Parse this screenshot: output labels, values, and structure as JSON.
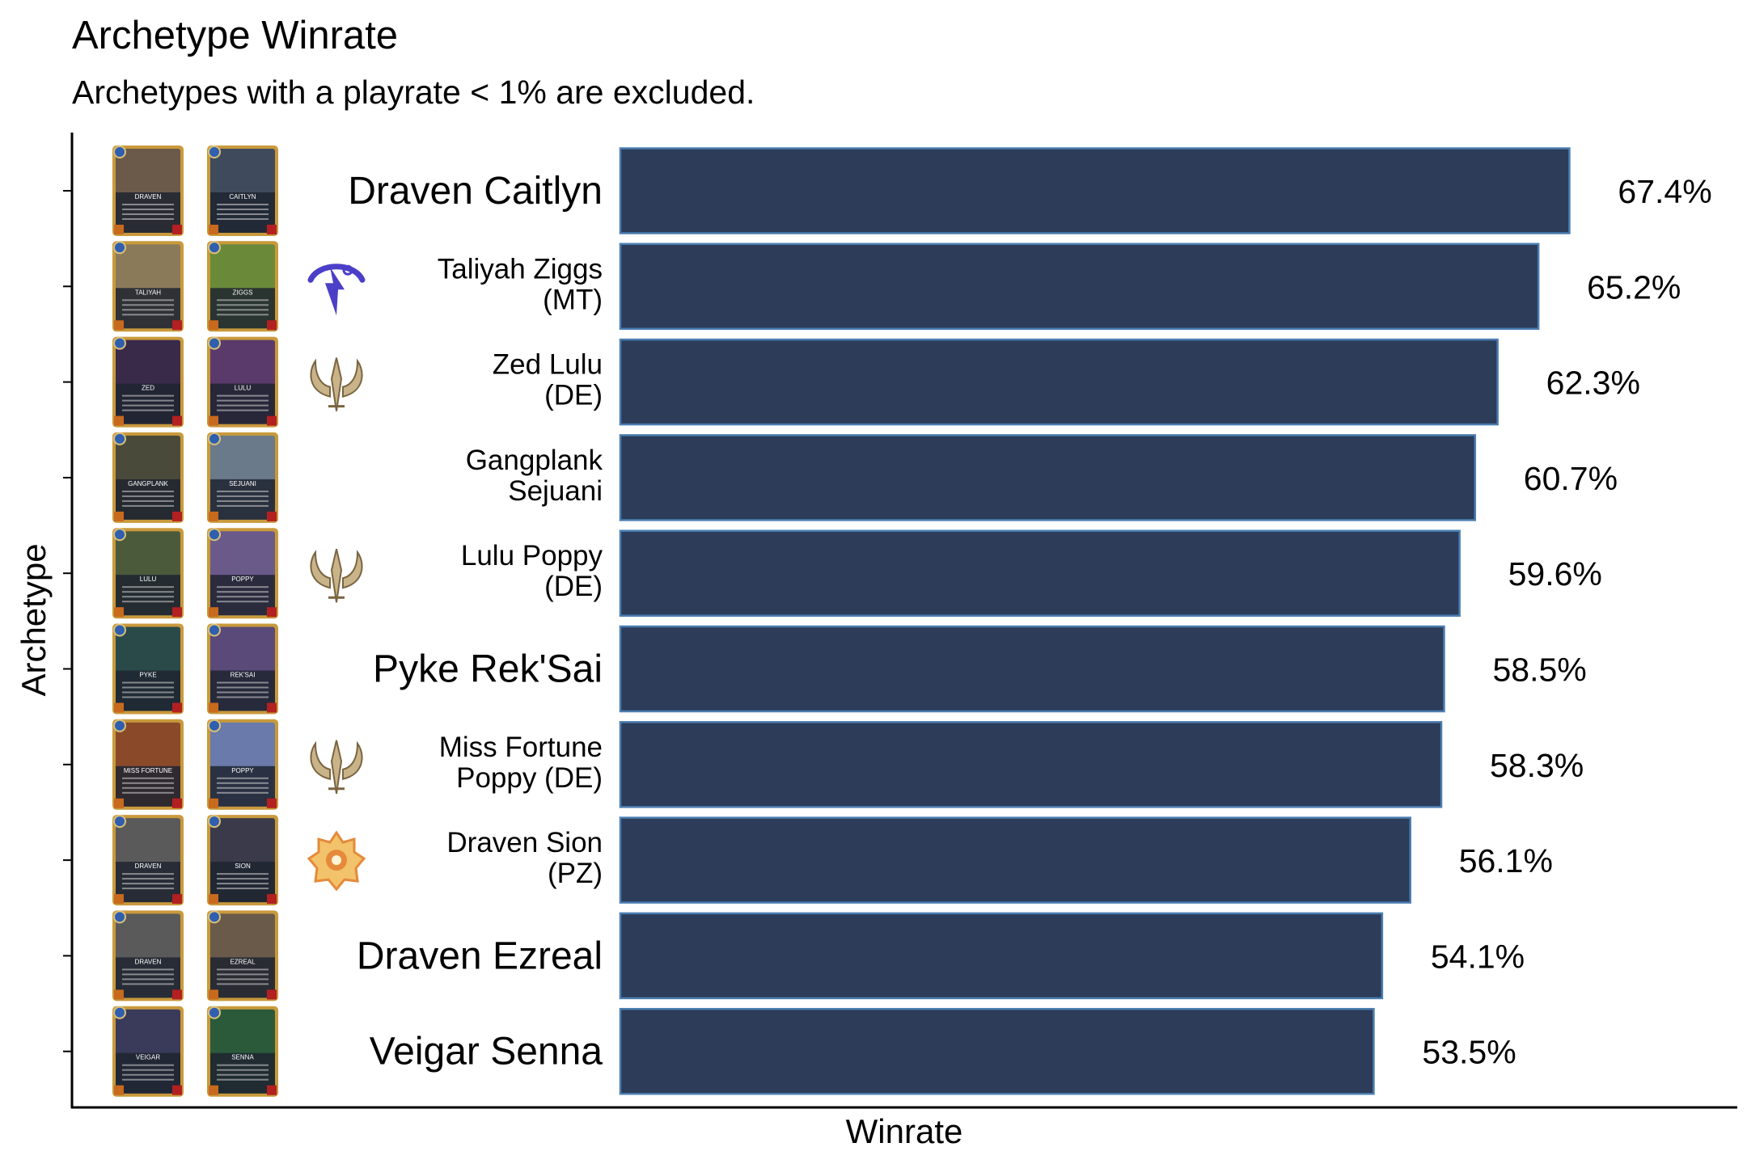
{
  "chart_data": {
    "type": "bar",
    "orientation": "horizontal",
    "title": "Archetype Winrate",
    "subtitle": "Archetypes with a playrate < 1% are excluded.",
    "xlabel": "Winrate",
    "ylabel": "Archetype",
    "xlim": [
      0,
      71
    ],
    "grid": false,
    "legend": "none",
    "categories": [
      "Draven Caitlyn",
      "Taliyah Ziggs\n(MT)",
      "Zed Lulu\n(DE)",
      "Gangplank\nSejuani",
      "Lulu Poppy\n(DE)",
      "Pyke Rek'Sai",
      "Miss Fortune\nPoppy (DE)",
      "Draven Sion\n(PZ)",
      "Draven Ezreal",
      "Veigar Senna"
    ],
    "values": [
      67.4,
      65.2,
      62.3,
      60.7,
      59.6,
      58.5,
      58.3,
      56.1,
      54.1,
      53.5
    ],
    "value_labels": [
      "67.4%",
      "65.2%",
      "62.3%",
      "60.7%",
      "59.6%",
      "58.5%",
      "58.3%",
      "56.1%",
      "54.1%",
      "53.5%"
    ],
    "region_icons": [
      "",
      "targon-icon",
      "demacia-icon",
      "",
      "demacia-icon",
      "",
      "demacia-icon",
      "piltover-zaun-icon",
      "",
      ""
    ],
    "champion_cards": [
      [
        "Draven",
        "Caitlyn"
      ],
      [
        "Taliyah",
        "Ziggs"
      ],
      [
        "Zed",
        "Lulu"
      ],
      [
        "Gangplank",
        "Sejuani"
      ],
      [
        "Lulu",
        "Poppy"
      ],
      [
        "Pyke",
        "Rek'Sai"
      ],
      [
        "Miss Fortune",
        "Poppy"
      ],
      [
        "Draven",
        "Sion"
      ],
      [
        "Draven",
        "Ezreal"
      ],
      [
        "Veigar",
        "Senna"
      ]
    ],
    "colors": {
      "bar_fill": "#2c3c59",
      "bar_stroke": "#4a7db0",
      "card_frame": "#c99a3c",
      "targon": "#4b3fc8",
      "demacia": "#c9b48a",
      "piltover": "#e58a3a"
    }
  }
}
